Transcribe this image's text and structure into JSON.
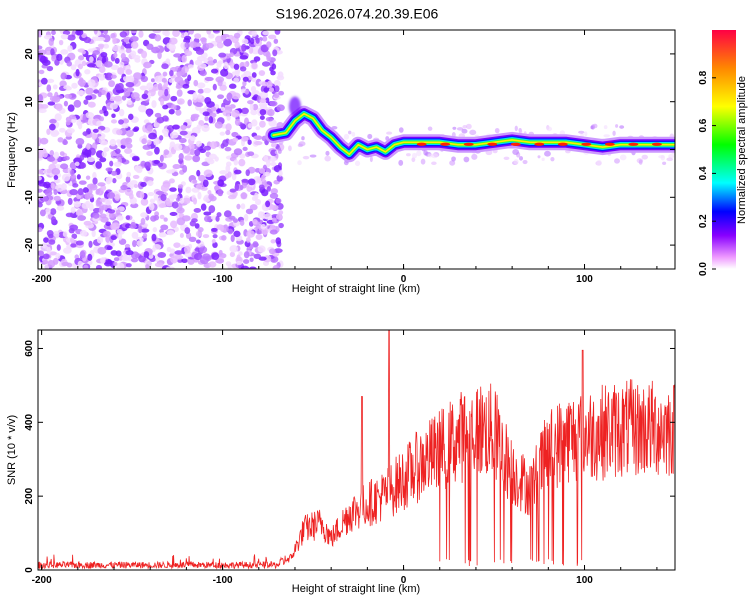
{
  "title": "S196.2026.074.20.39.E06",
  "chart_data": [
    {
      "type": "heatmap",
      "name": "spectrogram",
      "xlabel": "Height of straight line (km)",
      "ylabel": "Frequency (Hz)",
      "xlim": [
        -202,
        150
      ],
      "ylim": [
        -25,
        25
      ],
      "xticks": [
        -200,
        -100,
        0,
        100
      ],
      "yticks": [
        -20,
        -10,
        0,
        10,
        20
      ],
      "colorbar": {
        "label": "Normalized spectral amplitude",
        "range": [
          0,
          1
        ],
        "ticks": [
          "0.0",
          "0.2",
          "0.4",
          "0.6",
          "0.8"
        ]
      },
      "ridge_line": {
        "description": "dominant frequency vs height",
        "x": [
          -72,
          -65,
          -60,
          -55,
          -50,
          -45,
          -40,
          -35,
          -30,
          -25,
          -20,
          -15,
          -10,
          -5,
          0,
          10,
          20,
          30,
          40,
          50,
          60,
          70,
          80,
          90,
          100,
          110,
          120,
          130,
          140,
          150
        ],
        "y": [
          3,
          3.5,
          6,
          7.5,
          6.5,
          4,
          2.5,
          0.5,
          -1,
          1,
          0,
          0.5,
          -0.5,
          1,
          1.5,
          1.5,
          1.5,
          1,
          1,
          1.5,
          2,
          1.5,
          1.5,
          1.5,
          1,
          0.5,
          1,
          1,
          1,
          1
        ]
      },
      "noise_region_x": [
        -202,
        -72
      ]
    },
    {
      "type": "line",
      "name": "snr",
      "xlabel": "Height of straight line (km)",
      "ylabel": "SNR (10 * v/v)",
      "xlim": [
        -202,
        150
      ],
      "ylim": [
        0,
        650
      ],
      "xticks": [
        -200,
        -100,
        0,
        100
      ],
      "yticks": [
        0,
        200,
        400,
        600
      ],
      "color": "#ee2222",
      "envelope": {
        "x": [
          -202,
          -70,
          -62,
          -55,
          -45,
          -40,
          -30,
          -20,
          -10,
          0,
          10,
          20,
          30,
          40,
          50,
          60,
          70,
          80,
          90,
          100,
          120,
          150
        ],
        "y": [
          15,
          15,
          40,
          130,
          150,
          100,
          180,
          210,
          240,
          290,
          340,
          380,
          420,
          450,
          440,
          310,
          260,
          380,
          420,
          430,
          450,
          450
        ]
      },
      "spikes": [
        {
          "x": -8,
          "y": 650
        },
        {
          "x": -23,
          "y": 470
        },
        {
          "x": 99,
          "y": 595
        }
      ]
    }
  ]
}
